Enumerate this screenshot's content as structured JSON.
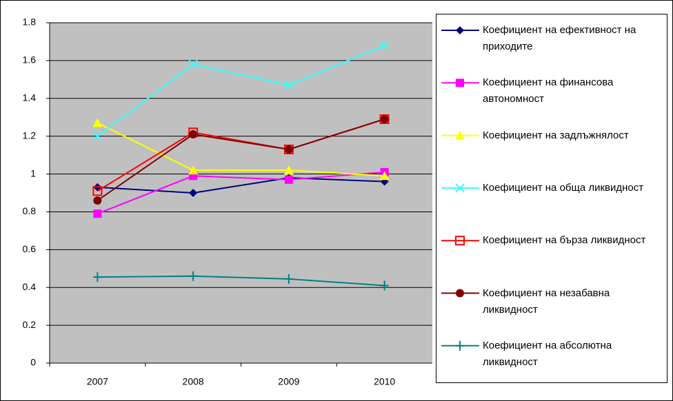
{
  "chart_data": {
    "type": "line",
    "categories": [
      "2007",
      "2008",
      "2009",
      "2010"
    ],
    "ylim": [
      0,
      1.8
    ],
    "yticks": [
      0,
      0.2,
      0.4,
      0.6,
      0.8,
      1,
      1.2,
      1.4,
      1.6,
      1.8
    ],
    "grid": true,
    "series": [
      {
        "name": "Коефициент на ефективност на приходите",
        "color": "#000080",
        "marker": "diamond",
        "values": [
          0.93,
          0.9,
          0.98,
          0.96
        ]
      },
      {
        "name": "Коефициент на финансова автономност",
        "color": "#ff00ff",
        "marker": "square",
        "values": [
          0.79,
          0.99,
          0.97,
          1.01
        ]
      },
      {
        "name": "Коефициент на задлъжнялост",
        "color": "#ffff00",
        "marker": "triangle",
        "values": [
          1.27,
          1.02,
          1.02,
          0.99
        ]
      },
      {
        "name": "Коефициент на обща ликвидност",
        "color": "#33ffff",
        "marker": "x",
        "values": [
          1.2,
          1.58,
          1.47,
          1.68
        ]
      },
      {
        "name": "Коефициент на бърза ликвидност",
        "color": "#ff0000",
        "marker": "open-square",
        "values": [
          0.91,
          1.22,
          1.13,
          1.29
        ]
      },
      {
        "name": "Коефициент на незабавна ликвидност",
        "color": "#800000",
        "marker": "circle",
        "values": [
          0.86,
          1.21,
          1.13,
          1.29
        ]
      },
      {
        "name": "Коефициент на абсолютна ликвидност",
        "color": "#008080",
        "marker": "plus",
        "values": [
          0.455,
          0.46,
          0.445,
          0.41
        ]
      }
    ]
  }
}
